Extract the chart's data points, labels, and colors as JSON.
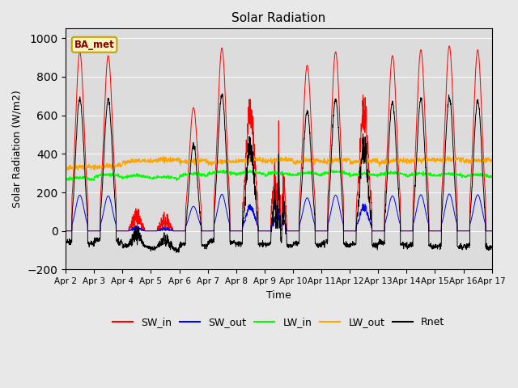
{
  "title": "Solar Radiation",
  "xlabel": "Time",
  "ylabel": "Solar Radiation (W/m2)",
  "ylim": [
    -200,
    1050
  ],
  "xlim": [
    0,
    15
  ],
  "x_tick_labels": [
    "Apr 2",
    "Apr 3",
    "Apr 4",
    "Apr 5",
    "Apr 6",
    "Apr 7",
    "Apr 8",
    "Apr 9",
    "Apr 10",
    "Apr 11",
    "Apr 12",
    "Apr 13",
    "Apr 14",
    "Apr 15",
    "Apr 16",
    "Apr 17"
  ],
  "legend_label": "BA_met",
  "series_names": [
    "SW_in",
    "SW_out",
    "LW_in",
    "LW_out",
    "Rnet"
  ],
  "series_colors": [
    "red",
    "blue",
    "lime",
    "orange",
    "black"
  ],
  "background_color": "#e8e8e8",
  "plot_bg_color": "#dcdcdc",
  "n_days": 15,
  "pts_per_day": 144,
  "lw_in_base": 265,
  "lw_out_base": 355,
  "albedo": 0.2,
  "night_rnet": -80
}
